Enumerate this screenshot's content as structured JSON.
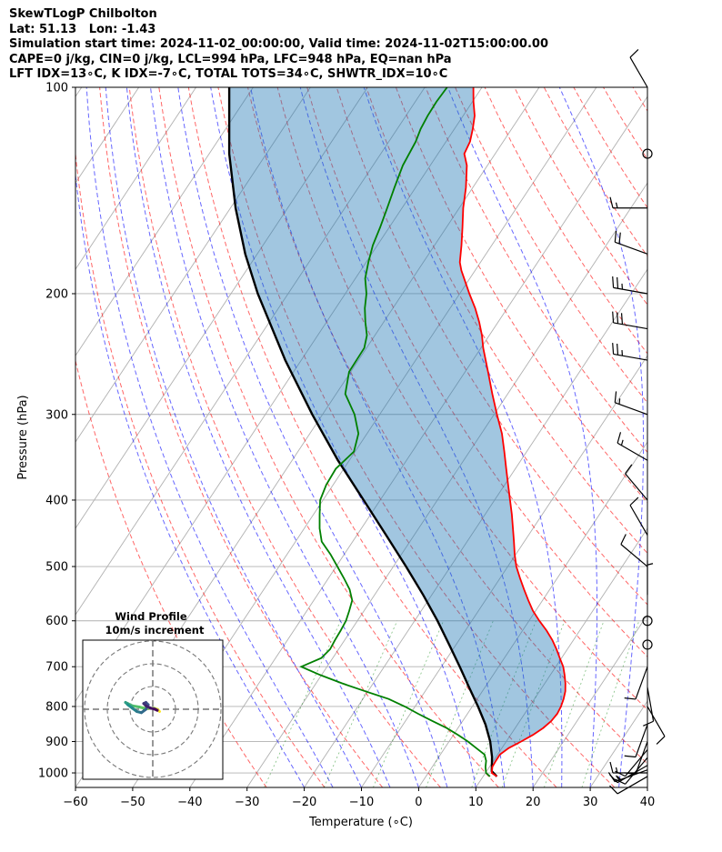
{
  "header": {
    "lines": [
      "SkewTLogP Chilbolton",
      "Lat: 51.13   Lon: -1.43",
      "Simulation start time: 2024-11-02_00:00:00, Valid time: 2024-11-02T15:00:00.00",
      "CAPE=0 j/kg, CIN=0 j/kg, LCL=994 hPa, LFC=948 hPa, EQ=nan hPa",
      "LFT IDX=13∘C, K IDX=-7∘C, TOTAL TOTS=34∘C, SHWTR_IDX=10∘C"
    ]
  },
  "chart_data": {
    "type": "line",
    "title": "SkewTLogP Chilbolton",
    "xlabel": "Temperature (∘C)",
    "ylabel": "Pressure (hPa)",
    "xlim": [
      -60,
      40
    ],
    "ylim": [
      1050,
      100
    ],
    "yscale": "log",
    "x_ticks": [
      -60,
      -50,
      -40,
      -30,
      -20,
      -10,
      0,
      10,
      20,
      30,
      40
    ],
    "x_tick_labels": [
      "−60",
      "−50",
      "−40",
      "−30",
      "−20",
      "−10",
      "0",
      "10",
      "20",
      "30",
      "40"
    ],
    "y_ticks": [
      1000,
      900,
      800,
      700,
      600,
      500,
      400,
      300,
      200,
      100
    ],
    "y_tick_labels": [
      "1000",
      "900",
      "800",
      "700",
      "600",
      "500",
      "400",
      "300",
      "200",
      "100"
    ],
    "grid": true,
    "series": [
      {
        "kind": "temperature",
        "color": "#ff0000",
        "pressure": [
          1012,
          1000,
          980,
          960,
          940,
          920,
          900,
          880,
          860,
          840,
          820,
          800,
          780,
          760,
          740,
          720,
          700,
          680,
          660,
          640,
          620,
          600,
          580,
          560,
          540,
          520,
          500,
          480,
          460,
          440,
          420,
          400,
          380,
          360,
          340,
          320,
          300,
          280,
          260,
          240,
          230,
          220,
          210,
          200,
          190,
          185,
          180,
          170,
          160,
          150,
          140,
          130,
          125,
          120,
          115,
          110,
          105,
          100
        ],
        "values": [
          12.4,
          11.1,
          10.5,
          10.4,
          10.4,
          11.2,
          12.6,
          13.9,
          14.9,
          15.5,
          15.7,
          15.5,
          15.1,
          14.5,
          13.6,
          12.5,
          11.3,
          9.7,
          8.1,
          6.3,
          4.2,
          1.8,
          -0.5,
          -2.5,
          -4.5,
          -6.5,
          -8.5,
          -10.2,
          -11.8,
          -13.5,
          -15.3,
          -17.3,
          -19.4,
          -21.6,
          -23.9,
          -26.4,
          -29.5,
          -32.7,
          -36.0,
          -39.6,
          -41.3,
          -43.3,
          -45.6,
          -48.3,
          -51.0,
          -52.4,
          -53.6,
          -55.3,
          -57.2,
          -59.3,
          -61.2,
          -63.6,
          -65.4,
          -65.8,
          -66.8,
          -68.0,
          -69.8,
          -71.5
        ]
      },
      {
        "kind": "dewpoint",
        "color": "#008000",
        "pressure": [
          1012,
          1000,
          980,
          960,
          940,
          920,
          900,
          880,
          860,
          840,
          820,
          800,
          780,
          760,
          740,
          720,
          700,
          680,
          660,
          640,
          620,
          600,
          580,
          560,
          540,
          520,
          500,
          480,
          460,
          440,
          420,
          400,
          380,
          360,
          340,
          320,
          300,
          280,
          260,
          240,
          230,
          220,
          210,
          200,
          190,
          180,
          170,
          160,
          150,
          140,
          130,
          120,
          115,
          110,
          105,
          100
        ],
        "values": [
          11.2,
          10.1,
          9.3,
          8.7,
          7.7,
          5.5,
          3.3,
          0.8,
          -2.0,
          -5.3,
          -8.6,
          -11.8,
          -15.5,
          -20.5,
          -25.5,
          -30.2,
          -34.5,
          -32.0,
          -31.5,
          -31.7,
          -31.8,
          -32.0,
          -32.6,
          -33.3,
          -35.0,
          -37.3,
          -39.8,
          -42.4,
          -45.4,
          -47.3,
          -48.9,
          -50.5,
          -51.2,
          -51.4,
          -50.2,
          -51.5,
          -54.4,
          -58.4,
          -60.3,
          -60.4,
          -61.4,
          -63.2,
          -64.9,
          -66.3,
          -68.3,
          -69.6,
          -70.8,
          -71.6,
          -72.6,
          -73.7,
          -74.8,
          -75.3,
          -75.9,
          -76.2,
          -76.3,
          -76.1
        ]
      },
      {
        "kind": "parcel",
        "color": "#000000",
        "pressure": [
          1012,
          994,
          948,
          900,
          850,
          800,
          750,
          700,
          650,
          600,
          550,
          500,
          450,
          400,
          350,
          300,
          250,
          200,
          175,
          150,
          125,
          100
        ],
        "values": [
          12.4,
          10.9,
          9.3,
          7.2,
          4.4,
          1.0,
          -2.8,
          -6.8,
          -11.2,
          -16.0,
          -21.5,
          -27.8,
          -34.9,
          -42.9,
          -52.0,
          -61.8,
          -72.8,
          -85.3,
          -92.1,
          -99.1,
          -106.5,
          -114.2
        ]
      }
    ],
    "wind_barbs": {
      "pressure": [
        1012,
        1000,
        990,
        975,
        950,
        925,
        900,
        850,
        800,
        750,
        700,
        650,
        600,
        550,
        500,
        450,
        400,
        350,
        300,
        250,
        225,
        200,
        175,
        150,
        125,
        100
      ],
      "speed_kt": [
        10,
        15,
        15,
        15,
        10,
        10,
        10,
        10,
        10,
        10,
        10,
        0,
        0,
        5,
        10,
        10,
        10,
        15,
        15,
        25,
        30,
        25,
        20,
        15,
        0,
        10
      ],
      "direction_deg": [
        240,
        270,
        250,
        240,
        220,
        220,
        200,
        200,
        150,
        170,
        200,
        0,
        0,
        0,
        310,
        330,
        320,
        300,
        290,
        280,
        280,
        280,
        290,
        270,
        0,
        330
      ]
    },
    "hodograph": {
      "title": "Wind Profile",
      "subtitle": "10m/s increment",
      "rings_ms": [
        10,
        20,
        30
      ],
      "u_ms": [
        3,
        2,
        1,
        0.5,
        -2,
        -4,
        -6,
        -9,
        -11,
        -12,
        -11,
        -9,
        -7,
        -5,
        -3,
        -2,
        -3,
        -4,
        -3,
        -1,
        1,
        2
      ],
      "v_ms": [
        -1,
        0,
        0.3,
        0.5,
        0.3,
        0.5,
        1,
        1.5,
        2.5,
        3,
        2,
        0.5,
        -1,
        -1.5,
        0,
        2,
        3,
        2.5,
        1.5,
        0.5,
        0,
        -0.5
      ]
    }
  }
}
